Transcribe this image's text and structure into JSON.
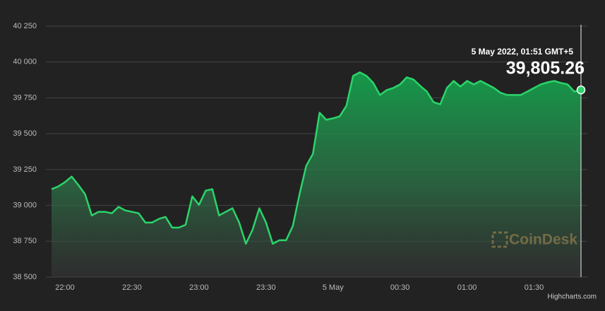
{
  "chart_data": {
    "type": "line",
    "categories": [
      null,
      null,
      "22:00",
      null,
      null,
      null,
      null,
      null,
      null,
      null,
      null,
      null,
      "22:30",
      null,
      null,
      null,
      null,
      null,
      null,
      null,
      null,
      null,
      "23:00",
      null,
      null,
      null,
      null,
      null,
      null,
      null,
      null,
      null,
      "23:30",
      null,
      null,
      null,
      null,
      null,
      null,
      null,
      null,
      null,
      "5 May",
      null,
      null,
      null,
      null,
      null,
      null,
      null,
      null,
      null,
      "00:30",
      null,
      null,
      null,
      null,
      null,
      null,
      null,
      null,
      null,
      "01:00",
      null,
      null,
      null,
      null,
      null,
      null,
      null,
      null,
      null,
      "01:30",
      null,
      null,
      null,
      null,
      null,
      null,
      null
    ],
    "values": [
      39113,
      39132,
      39162,
      39201,
      39142,
      39078,
      38930,
      38955,
      38955,
      38945,
      38990,
      38965,
      38955,
      38945,
      38880,
      38880,
      38905,
      38920,
      38845,
      38845,
      38865,
      39063,
      39004,
      39103,
      39113,
      38930,
      38955,
      38980,
      38880,
      38732,
      38831,
      38980,
      38880,
      38732,
      38757,
      38757,
      38856,
      39078,
      39276,
      39360,
      39646,
      39597,
      39607,
      39621,
      39695,
      39903,
      39928,
      39903,
      39854,
      39770,
      39804,
      39819,
      39844,
      39893,
      39878,
      39834,
      39794,
      39720,
      39705,
      39819,
      39868,
      39829,
      39868,
      39844,
      39868,
      39844,
      39819,
      39785,
      39770,
      39770,
      39770,
      39794,
      39819,
      39844,
      39858,
      39868,
      39854,
      39844,
      39794,
      39805.26
    ],
    "color": "#2bd46a",
    "ylim": [
      38500,
      40250
    ],
    "yticks": [
      {
        "value": 38500,
        "label": "38 500"
      },
      {
        "value": 38750,
        "label": "38 750"
      },
      {
        "value": 39000,
        "label": "39 000"
      },
      {
        "value": 39250,
        "label": "39 250"
      },
      {
        "value": 39500,
        "label": "39 500"
      },
      {
        "value": 39750,
        "label": "39 750"
      },
      {
        "value": 40000,
        "label": "40 000"
      },
      {
        "value": 40250,
        "label": "40 250"
      }
    ],
    "grid": true,
    "tooltip": {
      "date": "5 May 2022, 01:51 GMT+5",
      "value_label": "39,805.26"
    },
    "watermark": "CoinDesk",
    "credit": "Highcharts.com"
  }
}
